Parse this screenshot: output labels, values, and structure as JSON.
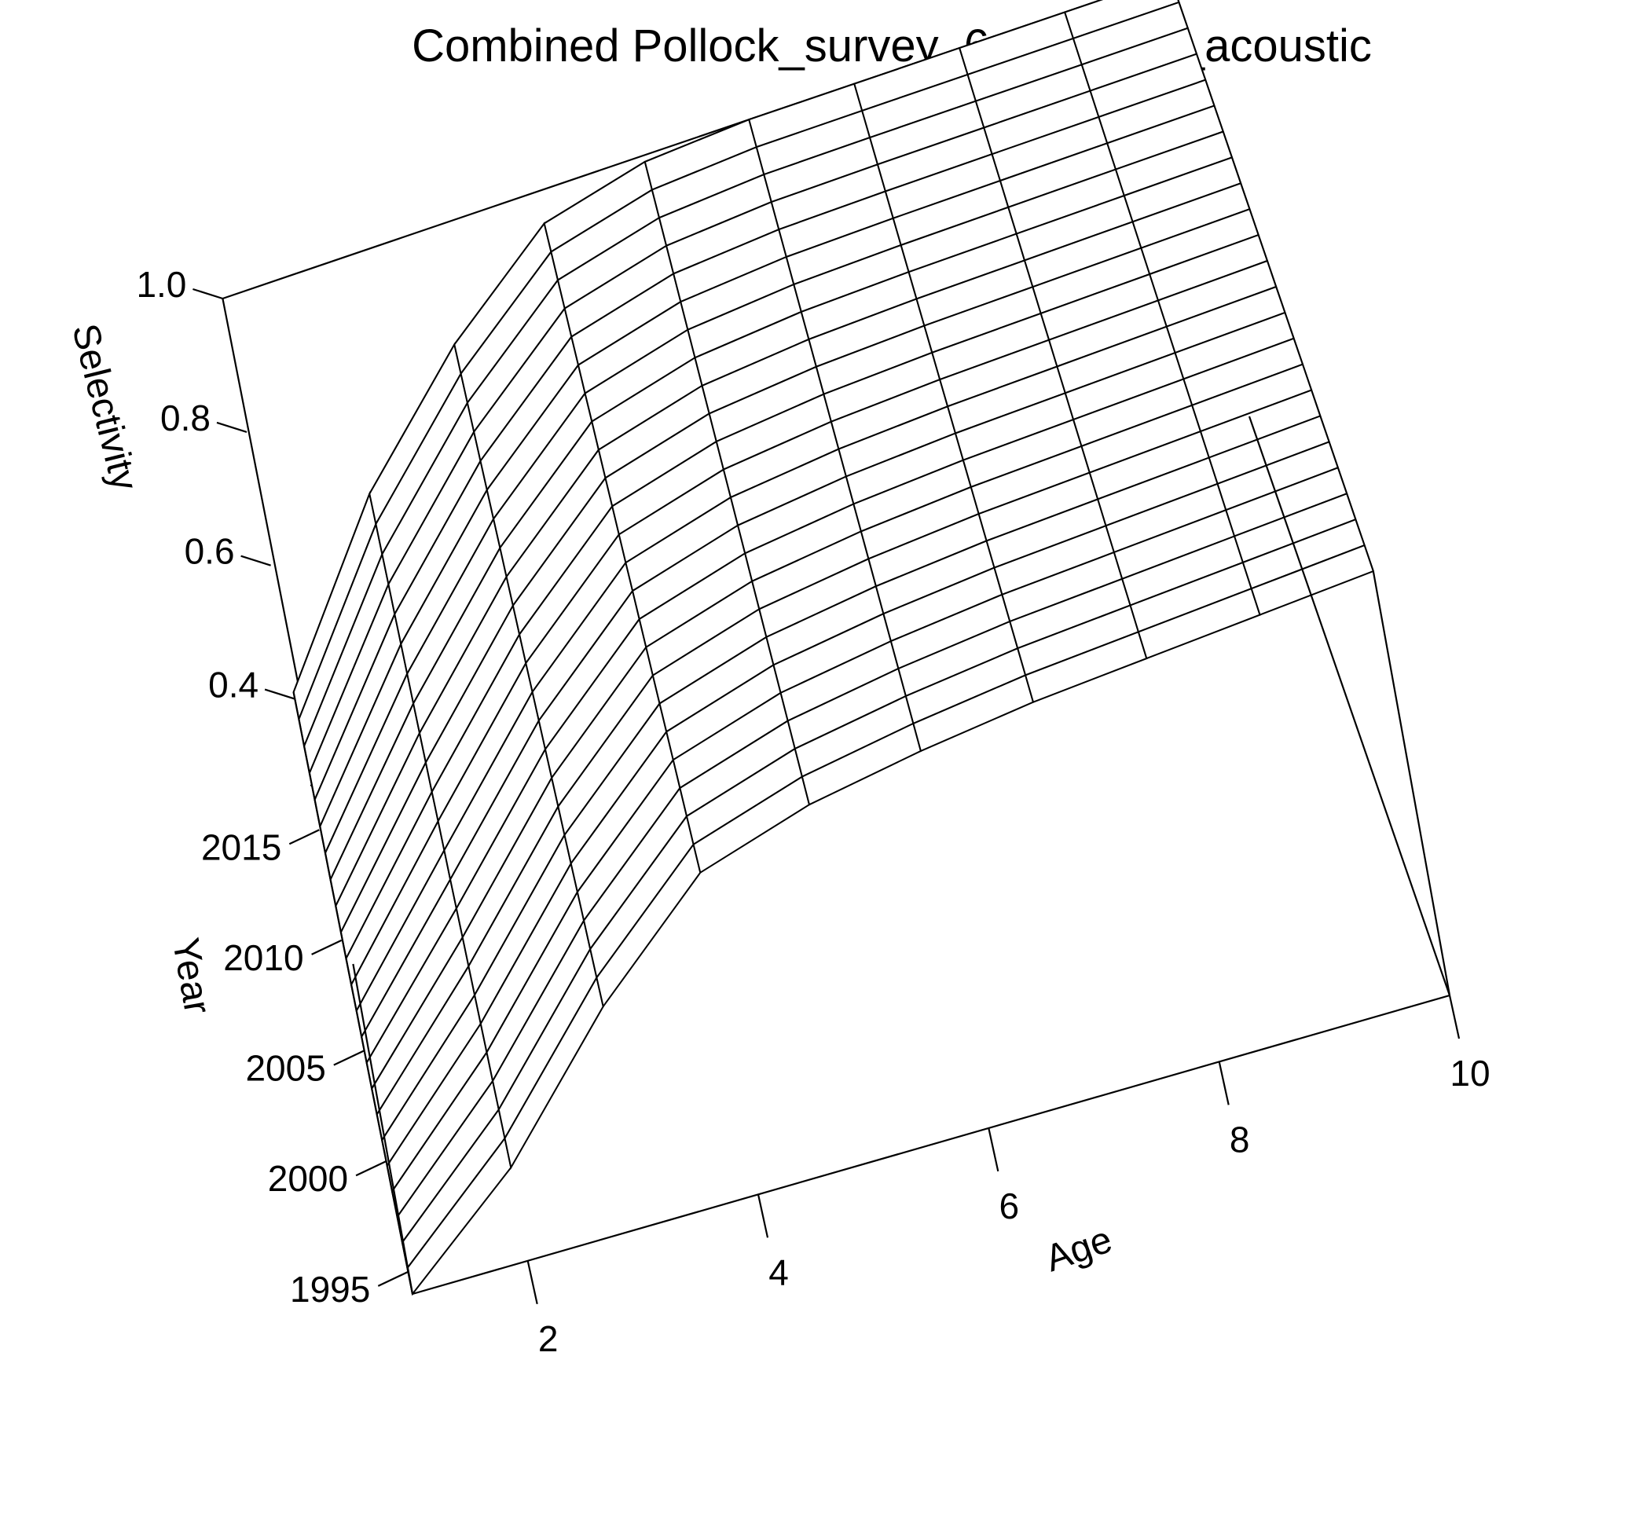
{
  "chart_data": {
    "type": "surface",
    "title": "Combined Pollock_survey_6_summer_acoustic",
    "xlabel": "Age",
    "ylabel": "Year",
    "zlabel": "Selectivity",
    "x_ticks": [
      "2",
      "4",
      "6",
      "8",
      "10"
    ],
    "y_ticks": [
      "1995",
      "2000",
      "2005",
      "2010",
      "2015"
    ],
    "z_ticks": [
      "0.4",
      "0.6",
      "0.8",
      "1.0"
    ],
    "xlim": [
      1,
      10
    ],
    "ylim": [
      1994,
      2017
    ],
    "zlim": [
      0.27,
      1.0
    ],
    "ages": [
      1,
      2,
      3,
      4,
      5,
      6,
      7,
      8,
      9,
      10
    ],
    "years": [
      1994,
      1995,
      1996,
      1997,
      1998,
      1999,
      2000,
      2001,
      2002,
      2003,
      2004,
      2005,
      2006,
      2007,
      2008,
      2009,
      2010,
      2011,
      2012,
      2013,
      2014,
      2015,
      2016,
      2017
    ],
    "selectivity_start_1994": [
      0.27,
      0.47,
      0.73,
      0.92,
      0.97,
      0.99,
      1.0,
      1.0,
      1.0,
      1.0
    ],
    "selectivity_end_2017": [
      0.41,
      0.65,
      0.82,
      0.95,
      0.99,
      1.0,
      1.0,
      1.0,
      1.0,
      1.0
    ],
    "grid": false,
    "legend": "none"
  }
}
